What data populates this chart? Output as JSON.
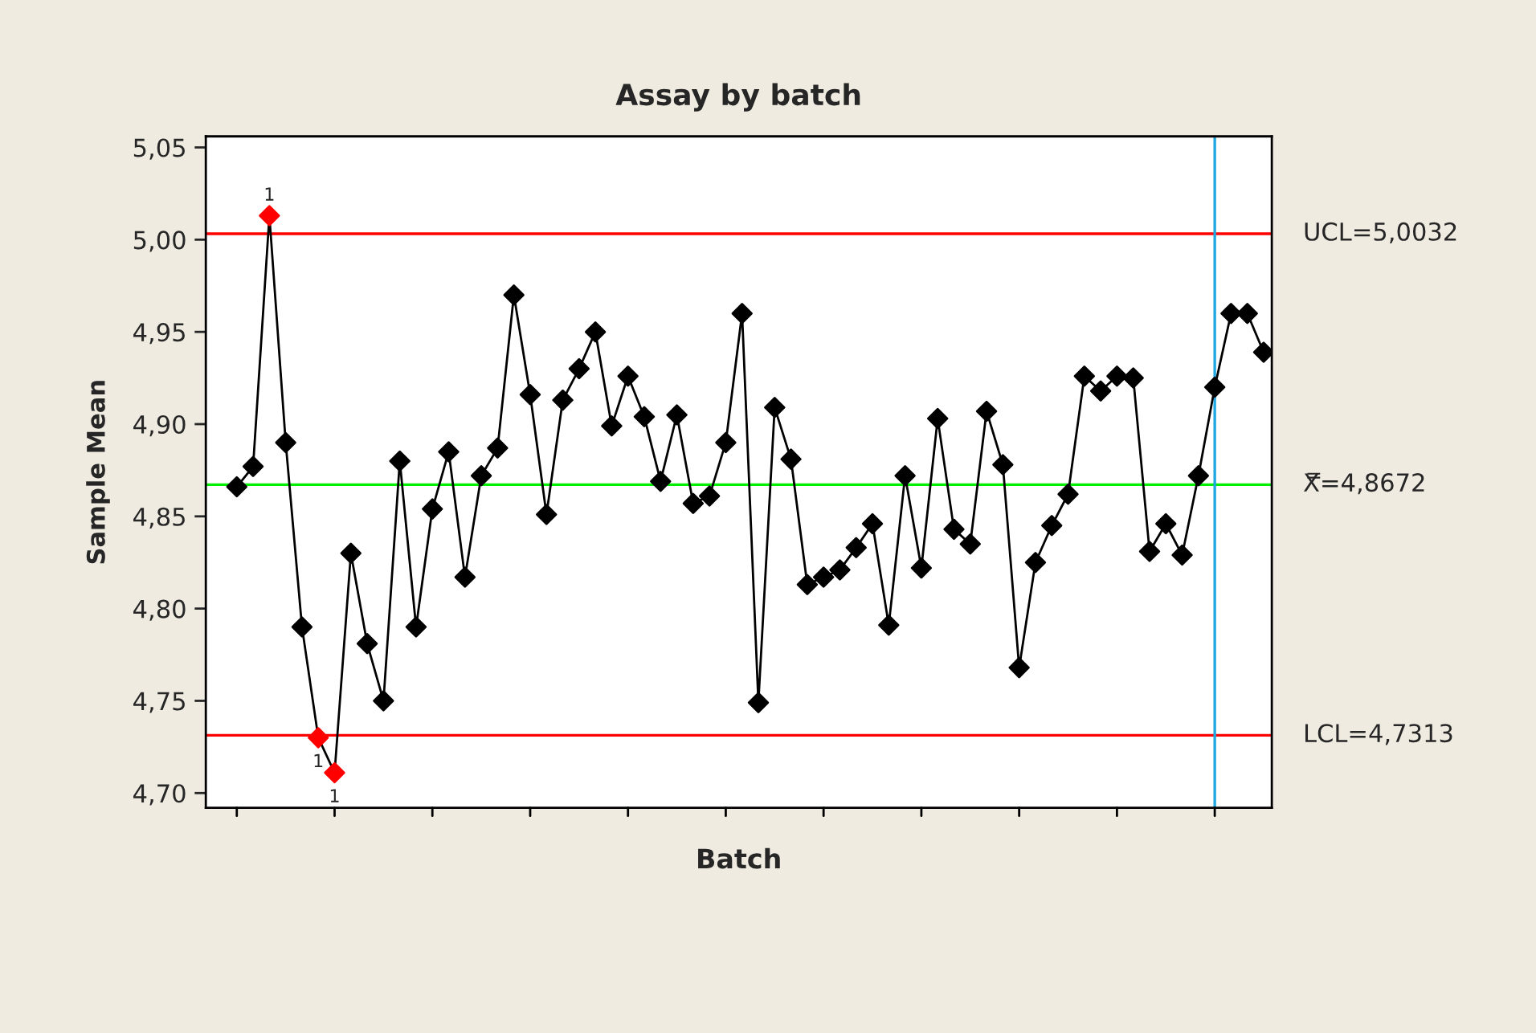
{
  "chart_data": {
    "type": "line",
    "title": "Assay by batch",
    "xlabel": "Batch",
    "ylabel": "Sample Mean",
    "categories": [
      null,
      null,
      null,
      null,
      null,
      null,
      null,
      null,
      null,
      null,
      null,
      null,
      null,
      null,
      null,
      null,
      null,
      null,
      null,
      null,
      null,
      null,
      null,
      null,
      null,
      null,
      null,
      null,
      null,
      null,
      null,
      null,
      null,
      null,
      null,
      null,
      null,
      null,
      null,
      null,
      null,
      null,
      null,
      null,
      null,
      null,
      null,
      null,
      null,
      null,
      null,
      null,
      null,
      null,
      null,
      null,
      null,
      null,
      null,
      null,
      null,
      null,
      null,
      null
    ],
    "series": [
      {
        "color": "#000000",
        "marker": "diamond",
        "values": [
          4.866,
          4.877,
          5.013,
          4.89,
          4.79,
          4.73,
          4.711,
          4.83,
          4.781,
          4.75,
          4.88,
          4.79,
          4.854,
          4.885,
          4.817,
          4.872,
          4.887,
          4.97,
          4.916,
          4.851,
          4.913,
          4.93,
          4.95,
          4.899,
          4.926,
          4.904,
          4.869,
          4.905,
          4.857,
          4.861,
          4.89,
          4.96,
          4.749,
          4.909,
          4.881,
          4.813,
          4.817,
          4.821,
          4.833,
          4.846,
          4.791,
          4.872,
          4.822,
          4.903,
          4.843,
          4.835,
          4.907,
          4.878,
          4.768,
          4.825,
          4.845,
          4.862,
          4.926,
          4.918,
          4.926,
          4.925,
          4.831,
          4.846,
          4.829,
          4.872,
          4.92,
          4.96,
          4.96,
          4.939
        ],
        "colors": [
          "#000000",
          "#000000",
          "#ff0000",
          "#000000",
          "#000000",
          "#ff0000",
          "#ff0000",
          "#000000",
          "#000000",
          "#000000",
          "#000000",
          "#000000",
          "#000000",
          "#000000",
          "#000000",
          "#000000",
          "#000000",
          "#000000",
          "#000000",
          "#000000",
          "#000000",
          "#000000",
          "#000000",
          "#000000",
          "#000000",
          "#000000",
          "#000000",
          "#000000",
          "#000000",
          "#000000",
          "#000000",
          "#000000",
          "#000000",
          "#000000",
          "#000000",
          "#000000",
          "#000000",
          "#000000",
          "#000000",
          "#000000",
          "#000000",
          "#000000",
          "#000000",
          "#000000",
          "#000000",
          "#000000",
          "#000000",
          "#000000",
          "#000000",
          "#000000",
          "#000000",
          "#000000",
          "#000000",
          "#000000",
          "#000000",
          "#000000",
          "#000000",
          "#000000",
          "#000000",
          "#000000",
          "#000000",
          "#000000",
          "#000000",
          "#000000"
        ]
      }
    ],
    "annotations": [
      {
        "text": "1",
        "y": 5.013
      },
      {
        "text": "1",
        "y": 4.73
      },
      {
        "text": "1",
        "y": 4.711
      }
    ],
    "ref_lines": [
      {
        "axis": "y",
        "value": 5.0032,
        "label": "UCL=5,0032",
        "color": "#ff0000"
      },
      {
        "axis": "y",
        "value": 4.8672,
        "label": "X̿=4,8672",
        "color": "#00ee00"
      },
      {
        "axis": "y",
        "value": 4.7313,
        "label": "LCL=4,7313",
        "color": "#ff0000"
      }
    ],
    "ylim": [
      4.692,
      5.056
    ],
    "yticks": [
      {
        "value": 4.7,
        "label": "4,70"
      },
      {
        "value": 4.75,
        "label": "4,75"
      },
      {
        "value": 4.8,
        "label": "4,80"
      },
      {
        "value": 4.85,
        "label": "4,85"
      },
      {
        "value": 4.9,
        "label": "4,90"
      },
      {
        "value": 4.95,
        "label": "4,95"
      },
      {
        "value": 5.0,
        "label": "5,00"
      },
      {
        "value": 5.05,
        "label": "5,05"
      }
    ],
    "tick_labels": "y",
    "grid": false,
    "legend": false,
    "line_style": "solid"
  }
}
